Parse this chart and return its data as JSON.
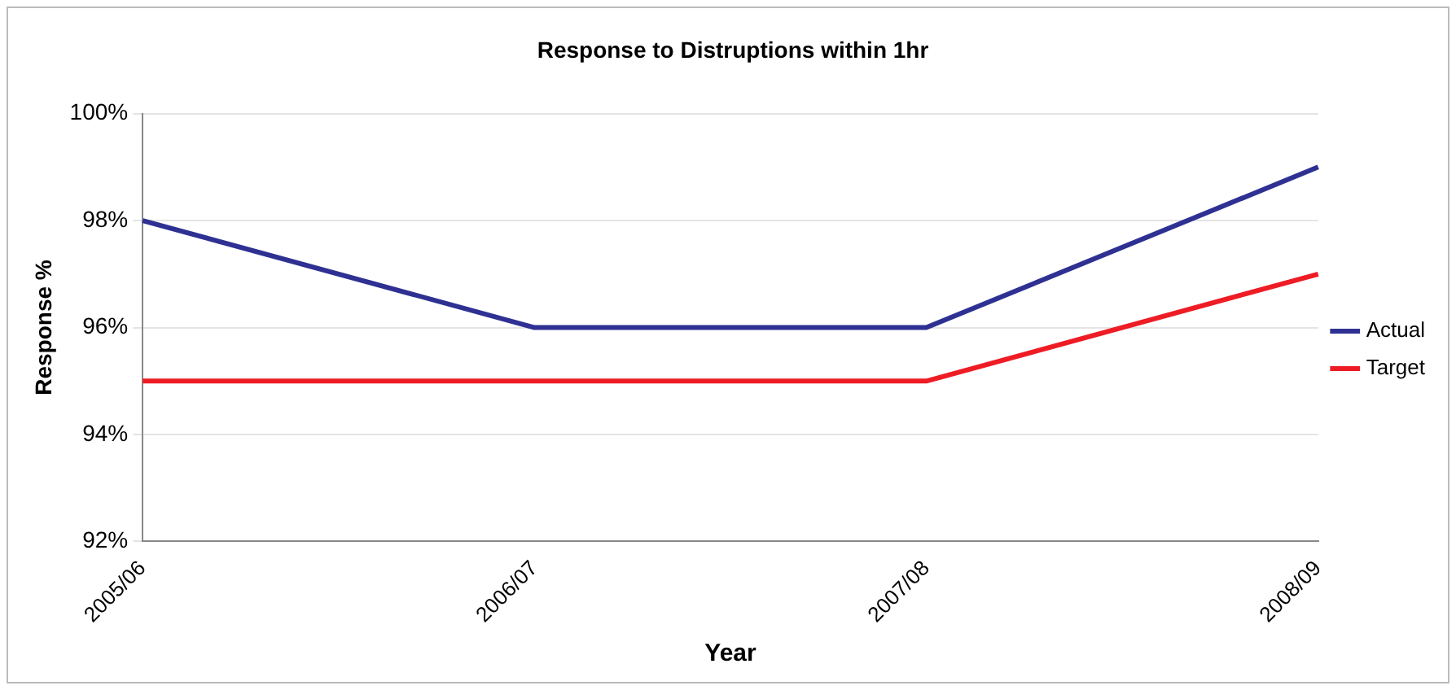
{
  "chart_data": {
    "type": "line",
    "title": "Response to Distruptions within 1hr",
    "xlabel": "Year",
    "ylabel": "Response %",
    "categories": [
      "2005/06",
      "2006/07",
      "2007/08",
      "2008/09"
    ],
    "series": [
      {
        "name": "Actual",
        "color": "#2e3192",
        "values": [
          98,
          96,
          96,
          99
        ]
      },
      {
        "name": "Target",
        "color": "#ee1c25",
        "values": [
          95,
          95,
          95,
          97
        ]
      }
    ],
    "ylim": [
      92,
      100
    ],
    "yticks": [
      {
        "value": 92,
        "label": "92%"
      },
      {
        "value": 94,
        "label": "94%"
      },
      {
        "value": 96,
        "label": "96%"
      },
      {
        "value": 98,
        "label": "98%"
      },
      {
        "value": 100,
        "label": "100%"
      }
    ],
    "grid": "y",
    "legend": "right",
    "marker": "none",
    "line_style": "solid"
  }
}
